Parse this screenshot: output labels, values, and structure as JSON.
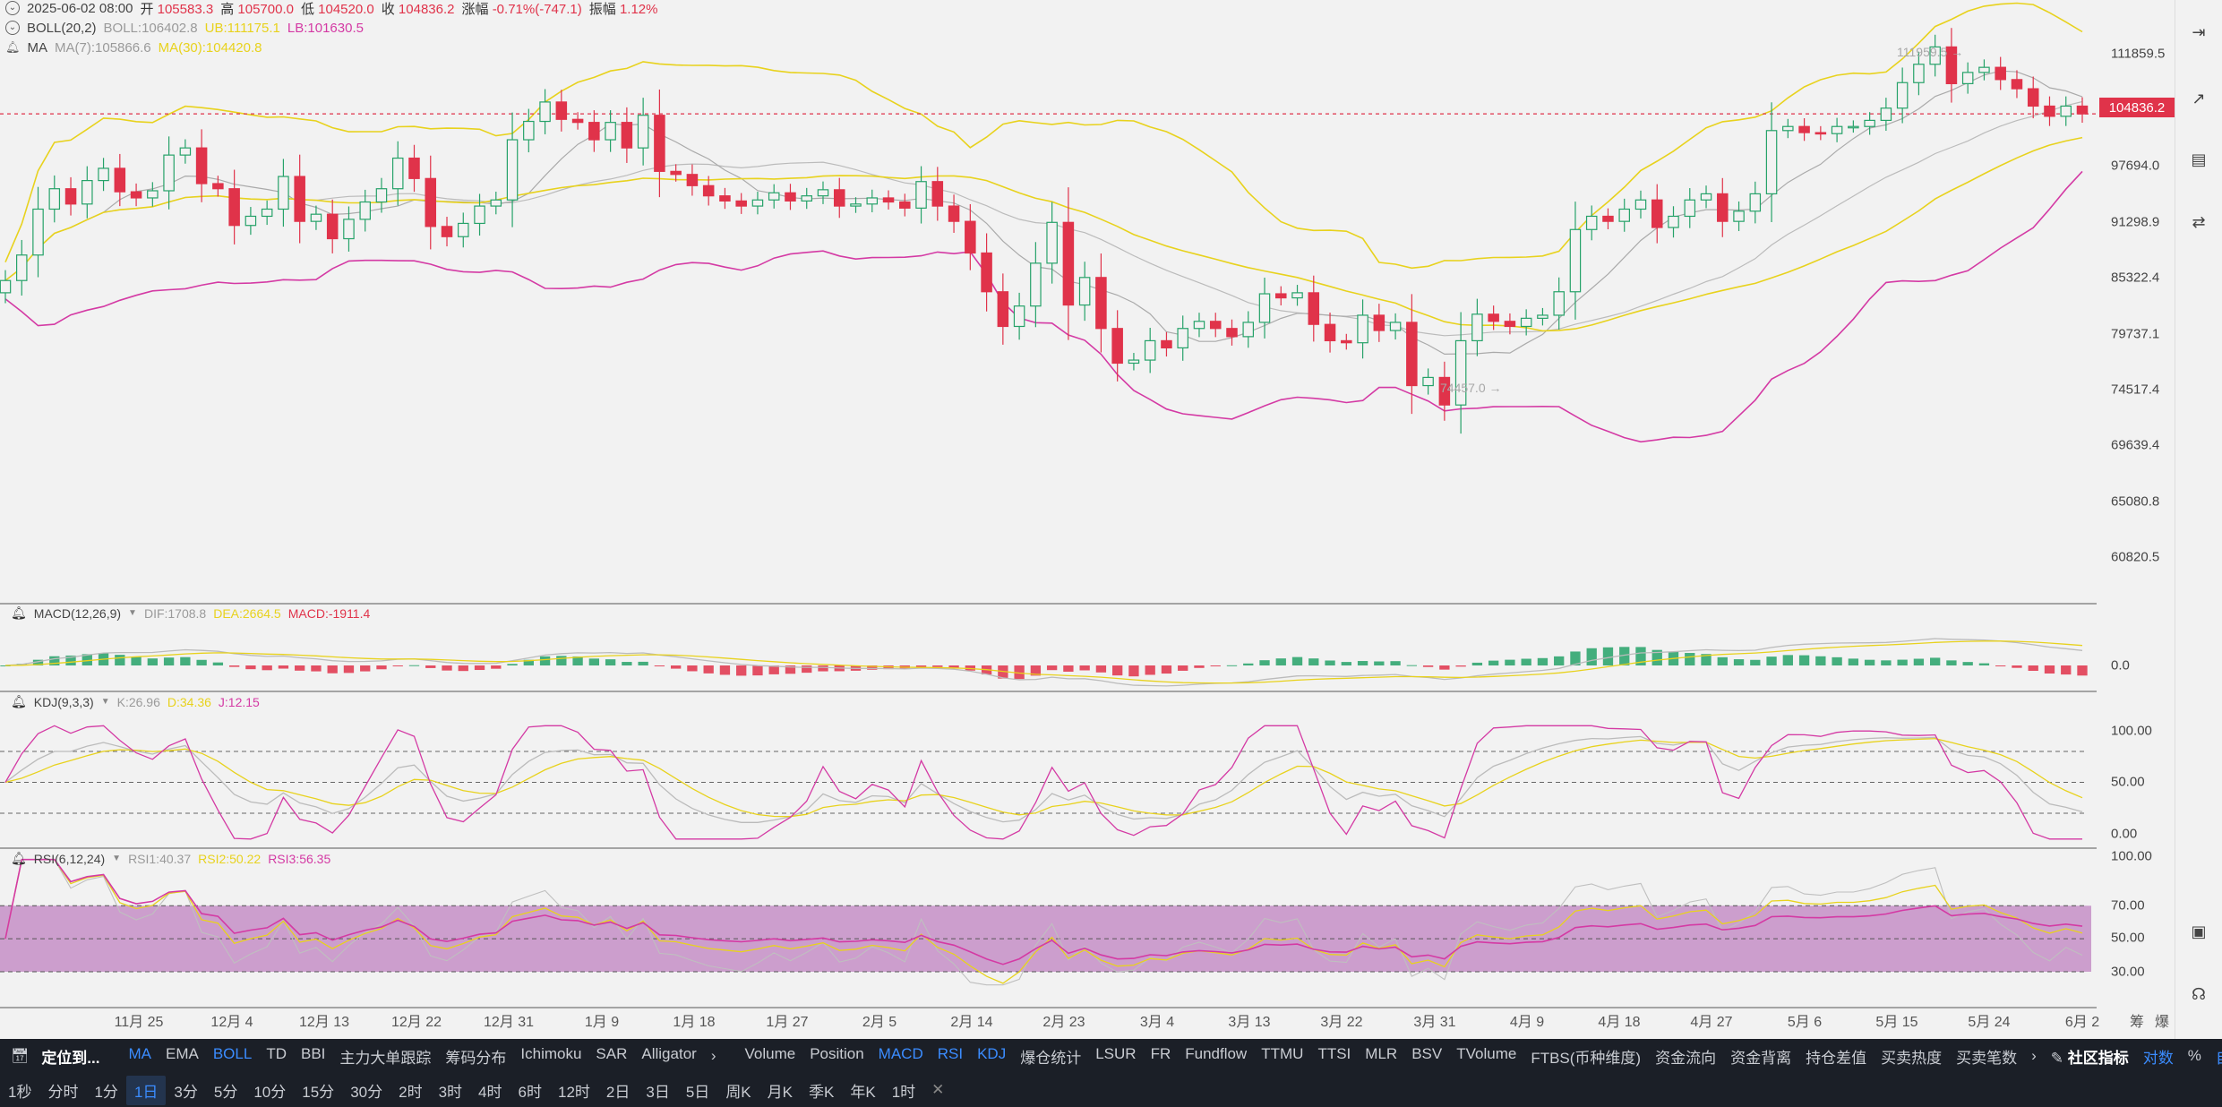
{
  "header": {
    "date": "2025-06-02 08:00",
    "open_label": "开",
    "open_value": "105583.3",
    "high_label": "高",
    "high_value": "105700.0",
    "low_label": "低",
    "low_value": "104520.0",
    "close_label": "收",
    "close_value": "104836.2",
    "change_label": "涨幅",
    "change_value": "-0.71%(-747.1)",
    "amplitude_label": "振幅",
    "amplitude_value": "1.12%"
  },
  "boll_header": {
    "name": "BOLL(20,2)",
    "boll": "BOLL:106402.8",
    "ub": "UB:111175.1",
    "lb": "LB:101630.5"
  },
  "ma_header": {
    "name": "MA",
    "ma7": "MA(7):105866.6",
    "ma30": "MA(30):104420.8"
  },
  "macd_header": {
    "name": "MACD(12,26,9)",
    "dif": "DIF:1708.8",
    "dea": "DEA:2664.5",
    "macd": "MACD:-1911.4"
  },
  "kdj_header": {
    "name": "KDJ(9,3,3)",
    "k": "K:26.96",
    "d": "D:34.36",
    "j": "J:12.15"
  },
  "rsi_header": {
    "name": "RSI(6,12,24)",
    "rsi1": "RSI1:40.37",
    "rsi2": "RSI2:50.22",
    "rsi3": "RSI3:56.35"
  },
  "annotations": {
    "high_marker": "111959.5",
    "low_marker": "74457.0"
  },
  "current_price_tag": "104836.2",
  "colors": {
    "up": "#26a269",
    "down": "#e0334a",
    "boll_band": "#d43aa4",
    "ma30": "#e8d21d",
    "ma7": "#aaaaaa",
    "rsi_fill": "#c58fc7",
    "accent": "#3b8cff"
  },
  "chart_data": [
    {
      "type": "candlestick",
      "interval": "1D",
      "x_tick_labels": [
        "11月 25",
        "12月 4",
        "12月 13",
        "12月 22",
        "12月 31",
        "1月 9",
        "1月 18",
        "1月 27",
        "2月 5",
        "2月 14",
        "2月 23",
        "3月 4",
        "3月 13",
        "3月 22",
        "3月 31",
        "4月 9",
        "4月 18",
        "4月 27",
        "5月 6",
        "5月 15",
        "5月 24",
        "6月 2"
      ],
      "y_tick_labels": [
        "111859.5",
        "104836.2",
        "97694.0",
        "91298.9",
        "85322.4",
        "79737.1",
        "74517.4",
        "69639.4",
        "65080.8",
        "60820.5"
      ],
      "ylim": [
        57000,
        116000
      ],
      "last_close": 104836.2,
      "visible_high": 111959.5,
      "visible_low": 74457.0,
      "series": [
        {
          "name": "BOLL",
          "values_key": "boll_mid"
        },
        {
          "name": "UB",
          "values_key": "boll_ub"
        },
        {
          "name": "LB",
          "values_key": "boll_lb"
        },
        {
          "name": "MA(7)",
          "values_key": "ma7"
        },
        {
          "name": "MA(30)",
          "values_key": "ma30"
        }
      ],
      "closes": [
        88500,
        91000,
        95500,
        97500,
        96000,
        98300,
        99500,
        97200,
        96600,
        97300,
        100800,
        101500,
        98000,
        97500,
        93900,
        94800,
        95500,
        98700,
        94300,
        95000,
        92600,
        94500,
        96200,
        97500,
        100500,
        98500,
        93800,
        92800,
        94100,
        95800,
        96400,
        102300,
        104100,
        106000,
        104300,
        104000,
        102300,
        104000,
        101500,
        104700,
        99200,
        98900,
        97800,
        96800,
        96300,
        95800,
        96400,
        97100,
        96300,
        96800,
        97400,
        95800,
        96000,
        96600,
        96200,
        95600,
        98200,
        95800,
        94300,
        91200,
        87400,
        84000,
        86000,
        90200,
        94200,
        86100,
        88800,
        83800,
        80400,
        80700,
        82600,
        81900,
        83800,
        84500,
        83800,
        83000,
        84400,
        87200,
        86800,
        87300,
        84200,
        82600,
        82400,
        85100,
        83600,
        84400,
        78200,
        79000,
        76300,
        82600,
        85200,
        84500,
        84000,
        84800,
        85100,
        87400,
        93500,
        94800,
        94300,
        95500,
        96400,
        93700,
        94800,
        96400,
        97000,
        94300,
        95300,
        97000,
        103200,
        103600,
        103000,
        102900,
        103600,
        103600,
        104200,
        105400,
        107900,
        109700,
        111400,
        107800,
        108900,
        109400,
        108200,
        107300,
        105600,
        104600,
        105600,
        104836
      ]
    },
    {
      "type": "bar",
      "name": "MACD(12,26,9)",
      "zero_label": "0.0",
      "dif_last": 1708.8,
      "dea_last": 2664.5,
      "macd_last": -1911.4
    },
    {
      "type": "line",
      "name": "KDJ(9,3,3)",
      "y_tick_labels": [
        "100.00",
        "50.00",
        "0.00"
      ],
      "guide_levels": [
        80,
        50,
        20
      ],
      "k_last": 26.96,
      "d_last": 34.36,
      "j_last": 12.15
    },
    {
      "type": "line",
      "name": "RSI(6,12,24)",
      "y_tick_labels": [
        "100.00",
        "70.00",
        "50.00",
        "30.00"
      ],
      "band": [
        30,
        70
      ],
      "rsi1_last": 40.37,
      "rsi2_last": 50.22,
      "rsi3_last": 56.35
    }
  ],
  "bottom_right_labels": [
    "筹",
    "爆"
  ],
  "indicator_bar": {
    "locate": "定位到...",
    "main_indicators": [
      "MA",
      "EMA",
      "BOLL",
      "TD",
      "BBI",
      "主力大单跟踪",
      "筹码分布",
      "Ichimoku",
      "SAR",
      "Alligator"
    ],
    "active_main": [
      "MA",
      "BOLL"
    ],
    "sub_indicators": [
      "Volume",
      "Position",
      "MACD",
      "RSI",
      "KDJ",
      "爆仓统计",
      "LSUR",
      "FR",
      "Fundflow",
      "TTMU",
      "TTSI",
      "MLR",
      "BSV",
      "TVolume",
      "FTBS(币种维度)",
      "资金流向",
      "资金背离",
      "持仓差值",
      "买卖热度",
      "买卖笔数"
    ],
    "active_sub": [
      "MACD",
      "RSI",
      "KDJ"
    ],
    "community": "社区指标",
    "log": "对数",
    "percent": "%",
    "auto": "自动"
  },
  "timeframe_bar": {
    "items": [
      "1秒",
      "分时",
      "1分",
      "1日",
      "3分",
      "5分",
      "10分",
      "15分",
      "30分",
      "2时",
      "3时",
      "4时",
      "6时",
      "12时",
      "2日",
      "3日",
      "5日",
      "周K",
      "月K",
      "季K",
      "年K",
      "1时"
    ],
    "active": "1日"
  }
}
